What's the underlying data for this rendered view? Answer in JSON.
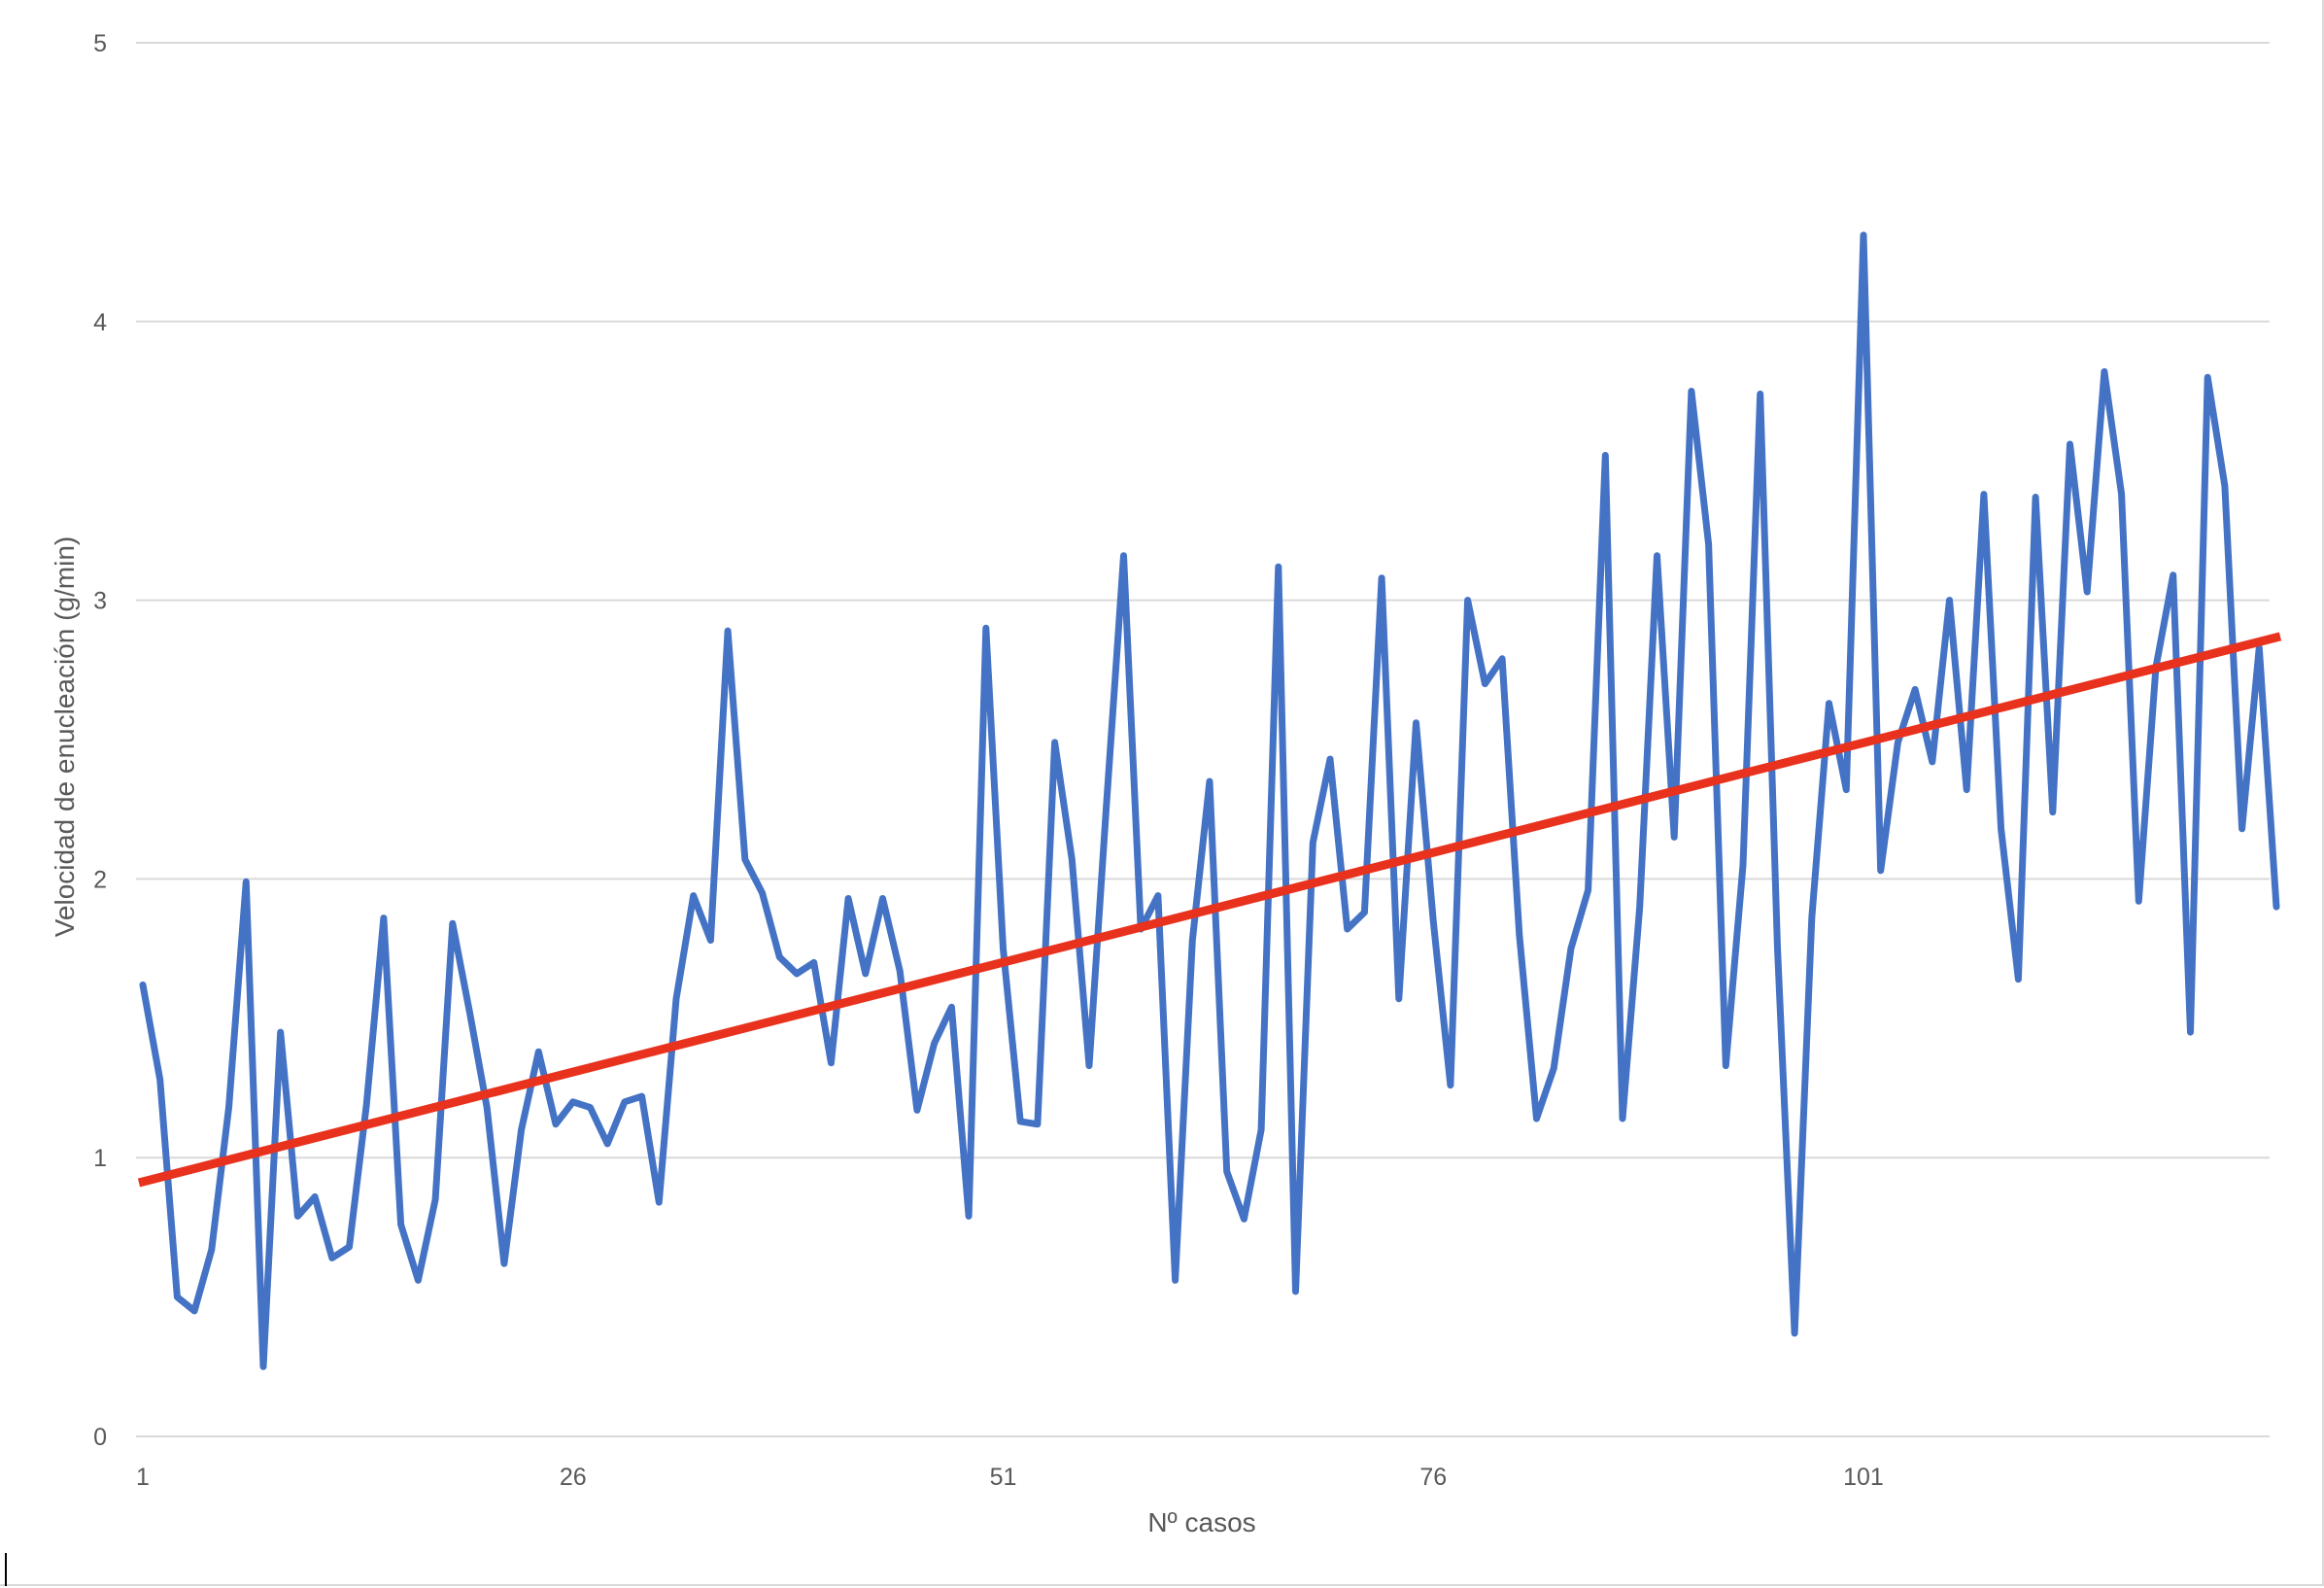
{
  "chart_data": {
    "type": "line",
    "title": "",
    "xlabel": "Nº casos",
    "ylabel": "Velocidad de enucleación (g/min)",
    "xlim": [
      1,
      125
    ],
    "ylim": [
      0,
      5
    ],
    "y_ticks": [
      "0",
      "1",
      "2",
      "3",
      "4",
      "5"
    ],
    "x_ticks": [
      "1",
      "26",
      "51",
      "76",
      "101"
    ],
    "x_tick_values": [
      1,
      26,
      51,
      76,
      101
    ],
    "grid": "horizontal",
    "legend": "none",
    "series": [
      {
        "color": "#4472c4",
        "x_start": 1,
        "values": [
          1.62,
          1.28,
          0.5,
          0.45,
          0.67,
          1.18,
          1.99,
          0.25,
          1.45,
          0.79,
          0.86,
          0.64,
          0.68,
          1.19,
          1.86,
          0.76,
          0.56,
          0.85,
          1.84,
          1.52,
          1.18,
          0.62,
          1.1,
          1.38,
          1.12,
          1.2,
          1.18,
          1.05,
          1.2,
          1.22,
          0.84,
          1.57,
          1.94,
          1.78,
          2.89,
          2.07,
          1.95,
          1.72,
          1.66,
          1.7,
          1.34,
          1.93,
          1.66,
          1.93,
          1.67,
          1.17,
          1.41,
          1.54,
          0.79,
          2.9,
          1.75,
          1.13,
          1.12,
          2.49,
          2.07,
          1.33,
          2.26,
          3.16,
          1.82,
          1.94,
          0.56,
          1.78,
          2.35,
          0.95,
          0.78,
          1.1,
          3.12,
          0.52,
          2.13,
          2.43,
          1.82,
          1.88,
          3.08,
          1.57,
          2.56,
          1.85,
          1.26,
          3.0,
          2.7,
          2.79,
          1.8,
          1.14,
          1.32,
          1.75,
          1.96,
          3.52,
          1.14,
          1.9,
          3.16,
          2.15,
          3.75,
          3.2,
          1.33,
          2.05,
          3.74,
          1.76,
          0.37,
          1.86,
          2.63,
          2.32,
          4.31,
          2.03,
          2.49,
          2.68,
          2.42,
          3.0,
          2.32,
          3.38,
          2.18,
          1.64,
          3.37,
          2.24,
          3.56,
          3.03,
          3.82,
          3.38,
          1.92,
          2.76,
          3.09,
          1.45,
          3.8,
          3.41,
          2.18,
          2.83,
          1.9
        ]
      },
      {
        "color": "#e8321e",
        "x": [
          1,
          125
        ],
        "values": [
          0.91,
          2.87
        ]
      }
    ]
  }
}
